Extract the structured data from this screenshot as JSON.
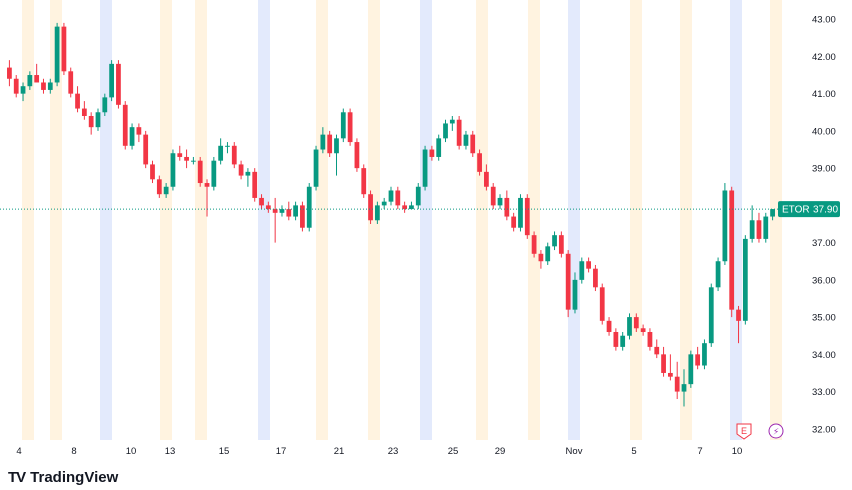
{
  "chart_data": {
    "type": "candlestick",
    "symbol": "ETOR",
    "last_price": "37.90",
    "y_ticks": [
      "43.00",
      "42.00",
      "41.00",
      "40.00",
      "39.00",
      "38.00",
      "37.00",
      "36.00",
      "35.00",
      "34.00",
      "33.00",
      "32.00"
    ],
    "ylim": [
      31.7,
      43.3
    ],
    "x_labels": [
      "4",
      "8",
      "10",
      "13",
      "15",
      "17",
      "21",
      "23",
      "25",
      "29",
      "Nov",
      "5",
      "7",
      "10"
    ],
    "session_shading": "pre-market / after-hours highlighted",
    "grid": false,
    "colors": {
      "up": "#089981",
      "down": "#f23645",
      "pre_market": "#fff3e0",
      "after_hours": "#e3eafc",
      "axis_text": "#131722",
      "price_badge": "#089981"
    },
    "candles": [
      {
        "o": 41.7,
        "h": 41.9,
        "l": 41.2,
        "c": 41.4
      },
      {
        "o": 41.4,
        "h": 41.5,
        "l": 40.9,
        "c": 41.0
      },
      {
        "o": 41.0,
        "h": 41.3,
        "l": 40.8,
        "c": 41.2
      },
      {
        "o": 41.2,
        "h": 41.6,
        "l": 41.1,
        "c": 41.5
      },
      {
        "o": 41.5,
        "h": 41.8,
        "l": 41.3,
        "c": 41.3
      },
      {
        "o": 41.3,
        "h": 41.4,
        "l": 41.0,
        "c": 41.1
      },
      {
        "o": 41.1,
        "h": 41.4,
        "l": 41.0,
        "c": 41.3
      },
      {
        "o": 41.3,
        "h": 42.9,
        "l": 41.2,
        "c": 42.8
      },
      {
        "o": 42.8,
        "h": 42.9,
        "l": 41.5,
        "c": 41.6
      },
      {
        "o": 41.6,
        "h": 41.7,
        "l": 40.9,
        "c": 41.0
      },
      {
        "o": 41.0,
        "h": 41.2,
        "l": 40.5,
        "c": 40.6
      },
      {
        "o": 40.6,
        "h": 40.8,
        "l": 40.3,
        "c": 40.4
      },
      {
        "o": 40.4,
        "h": 40.5,
        "l": 39.9,
        "c": 40.1
      },
      {
        "o": 40.1,
        "h": 40.6,
        "l": 40.0,
        "c": 40.5
      },
      {
        "o": 40.5,
        "h": 41.0,
        "l": 40.4,
        "c": 40.9
      },
      {
        "o": 40.9,
        "h": 41.9,
        "l": 40.8,
        "c": 41.8
      },
      {
        "o": 41.8,
        "h": 41.9,
        "l": 40.6,
        "c": 40.7
      },
      {
        "o": 40.7,
        "h": 40.8,
        "l": 39.5,
        "c": 39.6
      },
      {
        "o": 39.6,
        "h": 40.2,
        "l": 39.5,
        "c": 40.1
      },
      {
        "o": 40.1,
        "h": 40.2,
        "l": 39.7,
        "c": 39.9
      },
      {
        "o": 39.9,
        "h": 40.0,
        "l": 39.0,
        "c": 39.1
      },
      {
        "o": 39.1,
        "h": 39.2,
        "l": 38.6,
        "c": 38.7
      },
      {
        "o": 38.7,
        "h": 38.8,
        "l": 38.2,
        "c": 38.3
      },
      {
        "o": 38.3,
        "h": 38.6,
        "l": 38.2,
        "c": 38.5
      },
      {
        "o": 38.5,
        "h": 39.5,
        "l": 38.4,
        "c": 39.4
      },
      {
        "o": 39.4,
        "h": 39.6,
        "l": 39.2,
        "c": 39.3
      },
      {
        "o": 39.3,
        "h": 39.5,
        "l": 39.0,
        "c": 39.2
      },
      {
        "o": 39.2,
        "h": 39.3,
        "l": 39.1,
        "c": 39.2
      },
      {
        "o": 39.2,
        "h": 39.3,
        "l": 38.5,
        "c": 38.6
      },
      {
        "o": 38.6,
        "h": 38.7,
        "l": 37.7,
        "c": 38.5
      },
      {
        "o": 38.5,
        "h": 39.3,
        "l": 38.4,
        "c": 39.2
      },
      {
        "o": 39.2,
        "h": 39.8,
        "l": 39.1,
        "c": 39.6
      },
      {
        "o": 39.6,
        "h": 39.7,
        "l": 39.4,
        "c": 39.6
      },
      {
        "o": 39.6,
        "h": 39.7,
        "l": 39.0,
        "c": 39.1
      },
      {
        "o": 39.1,
        "h": 39.2,
        "l": 38.7,
        "c": 38.8
      },
      {
        "o": 38.8,
        "h": 39.0,
        "l": 38.5,
        "c": 38.9
      },
      {
        "o": 38.9,
        "h": 39.0,
        "l": 38.1,
        "c": 38.2
      },
      {
        "o": 38.2,
        "h": 38.3,
        "l": 37.9,
        "c": 38.0
      },
      {
        "o": 38.0,
        "h": 38.1,
        "l": 37.8,
        "c": 37.9
      },
      {
        "o": 37.9,
        "h": 38.2,
        "l": 37.0,
        "c": 37.8
      },
      {
        "o": 37.8,
        "h": 38.0,
        "l": 37.7,
        "c": 37.9
      },
      {
        "o": 37.9,
        "h": 38.1,
        "l": 37.6,
        "c": 37.7
      },
      {
        "o": 37.7,
        "h": 38.1,
        "l": 37.6,
        "c": 38.0
      },
      {
        "o": 38.0,
        "h": 38.1,
        "l": 37.3,
        "c": 37.4
      },
      {
        "o": 37.4,
        "h": 38.6,
        "l": 37.3,
        "c": 38.5
      },
      {
        "o": 38.5,
        "h": 39.6,
        "l": 38.4,
        "c": 39.5
      },
      {
        "o": 39.5,
        "h": 40.1,
        "l": 39.4,
        "c": 39.9
      },
      {
        "o": 39.9,
        "h": 40.0,
        "l": 39.3,
        "c": 39.4
      },
      {
        "o": 39.4,
        "h": 39.9,
        "l": 38.8,
        "c": 39.8
      },
      {
        "o": 39.8,
        "h": 40.6,
        "l": 39.7,
        "c": 40.5
      },
      {
        "o": 40.5,
        "h": 40.6,
        "l": 39.6,
        "c": 39.7
      },
      {
        "o": 39.7,
        "h": 39.8,
        "l": 38.9,
        "c": 39.0
      },
      {
        "o": 39.0,
        "h": 39.1,
        "l": 38.2,
        "c": 38.3
      },
      {
        "o": 38.3,
        "h": 38.4,
        "l": 37.5,
        "c": 37.6
      },
      {
        "o": 37.6,
        "h": 38.1,
        "l": 37.5,
        "c": 38.0
      },
      {
        "o": 38.0,
        "h": 38.2,
        "l": 37.9,
        "c": 38.1
      },
      {
        "o": 38.1,
        "h": 38.5,
        "l": 38.0,
        "c": 38.4
      },
      {
        "o": 38.4,
        "h": 38.5,
        "l": 37.9,
        "c": 38.0
      },
      {
        "o": 38.0,
        "h": 38.1,
        "l": 37.8,
        "c": 37.9
      },
      {
        "o": 37.9,
        "h": 38.1,
        "l": 37.9,
        "c": 38.0
      },
      {
        "o": 38.0,
        "h": 38.6,
        "l": 37.9,
        "c": 38.5
      },
      {
        "o": 38.5,
        "h": 39.6,
        "l": 38.4,
        "c": 39.5
      },
      {
        "o": 39.5,
        "h": 39.6,
        "l": 39.2,
        "c": 39.3
      },
      {
        "o": 39.3,
        "h": 39.9,
        "l": 39.2,
        "c": 39.8
      },
      {
        "o": 39.8,
        "h": 40.3,
        "l": 39.7,
        "c": 40.2
      },
      {
        "o": 40.2,
        "h": 40.4,
        "l": 40.0,
        "c": 40.3
      },
      {
        "o": 40.3,
        "h": 40.4,
        "l": 39.5,
        "c": 39.6
      },
      {
        "o": 39.6,
        "h": 40.0,
        "l": 39.5,
        "c": 39.9
      },
      {
        "o": 39.9,
        "h": 40.0,
        "l": 39.3,
        "c": 39.4
      },
      {
        "o": 39.4,
        "h": 39.5,
        "l": 38.8,
        "c": 38.9
      },
      {
        "o": 38.9,
        "h": 39.1,
        "l": 38.4,
        "c": 38.5
      },
      {
        "o": 38.5,
        "h": 38.6,
        "l": 37.9,
        "c": 38.0
      },
      {
        "o": 38.0,
        "h": 38.3,
        "l": 37.9,
        "c": 38.2
      },
      {
        "o": 38.2,
        "h": 38.4,
        "l": 37.6,
        "c": 37.7
      },
      {
        "o": 37.7,
        "h": 37.8,
        "l": 37.3,
        "c": 37.4
      },
      {
        "o": 37.4,
        "h": 38.3,
        "l": 37.3,
        "c": 38.2
      },
      {
        "o": 38.2,
        "h": 38.3,
        "l": 37.1,
        "c": 37.2
      },
      {
        "o": 37.2,
        "h": 37.3,
        "l": 36.6,
        "c": 36.7
      },
      {
        "o": 36.7,
        "h": 36.8,
        "l": 36.3,
        "c": 36.5
      },
      {
        "o": 36.5,
        "h": 37.0,
        "l": 36.4,
        "c": 36.9
      },
      {
        "o": 36.9,
        "h": 37.3,
        "l": 36.8,
        "c": 37.2
      },
      {
        "o": 37.2,
        "h": 37.3,
        "l": 36.6,
        "c": 36.7
      },
      {
        "o": 36.7,
        "h": 36.8,
        "l": 35.0,
        "c": 35.2
      },
      {
        "o": 35.2,
        "h": 36.2,
        "l": 35.1,
        "c": 36.0
      },
      {
        "o": 36.0,
        "h": 36.6,
        "l": 35.9,
        "c": 36.5
      },
      {
        "o": 36.5,
        "h": 36.6,
        "l": 36.2,
        "c": 36.3
      },
      {
        "o": 36.3,
        "h": 36.4,
        "l": 35.7,
        "c": 35.8
      },
      {
        "o": 35.8,
        "h": 35.9,
        "l": 34.8,
        "c": 34.9
      },
      {
        "o": 34.9,
        "h": 35.0,
        "l": 34.5,
        "c": 34.6
      },
      {
        "o": 34.6,
        "h": 34.7,
        "l": 34.1,
        "c": 34.2
      },
      {
        "o": 34.2,
        "h": 34.6,
        "l": 34.1,
        "c": 34.5
      },
      {
        "o": 34.5,
        "h": 35.1,
        "l": 34.4,
        "c": 35.0
      },
      {
        "o": 35.0,
        "h": 35.1,
        "l": 34.6,
        "c": 34.7
      },
      {
        "o": 34.7,
        "h": 34.8,
        "l": 34.5,
        "c": 34.6
      },
      {
        "o": 34.6,
        "h": 34.7,
        "l": 34.1,
        "c": 34.2
      },
      {
        "o": 34.2,
        "h": 34.4,
        "l": 33.9,
        "c": 34.0
      },
      {
        "o": 34.0,
        "h": 34.2,
        "l": 33.4,
        "c": 33.5
      },
      {
        "o": 33.5,
        "h": 34.0,
        "l": 33.3,
        "c": 33.4
      },
      {
        "o": 33.4,
        "h": 33.8,
        "l": 32.8,
        "c": 33.0
      },
      {
        "o": 33.0,
        "h": 33.6,
        "l": 32.6,
        "c": 33.2
      },
      {
        "o": 33.2,
        "h": 34.1,
        "l": 33.1,
        "c": 34.0
      },
      {
        "o": 34.0,
        "h": 34.2,
        "l": 33.6,
        "c": 33.7
      },
      {
        "o": 33.7,
        "h": 34.4,
        "l": 33.6,
        "c": 34.3
      },
      {
        "o": 34.3,
        "h": 35.9,
        "l": 34.2,
        "c": 35.8
      },
      {
        "o": 35.8,
        "h": 36.6,
        "l": 35.7,
        "c": 36.5
      },
      {
        "o": 36.5,
        "h": 38.6,
        "l": 36.4,
        "c": 38.4
      },
      {
        "o": 38.4,
        "h": 38.5,
        "l": 35.0,
        "c": 35.2
      },
      {
        "o": 35.2,
        "h": 35.3,
        "l": 34.3,
        "c": 34.9
      },
      {
        "o": 34.9,
        "h": 37.2,
        "l": 34.8,
        "c": 37.1
      },
      {
        "o": 37.1,
        "h": 38.0,
        "l": 37.0,
        "c": 37.6
      },
      {
        "o": 37.6,
        "h": 37.8,
        "l": 37.0,
        "c": 37.1
      },
      {
        "o": 37.1,
        "h": 37.8,
        "l": 37.0,
        "c": 37.7
      },
      {
        "o": 37.7,
        "h": 37.9,
        "l": 37.6,
        "c": 37.9
      }
    ],
    "events": [
      {
        "label": "E",
        "name": "earnings-marker"
      },
      {
        "label": "⚡",
        "name": "dividend-split-marker"
      }
    ]
  },
  "branding": {
    "name": "TradingView",
    "mark": "TV"
  }
}
